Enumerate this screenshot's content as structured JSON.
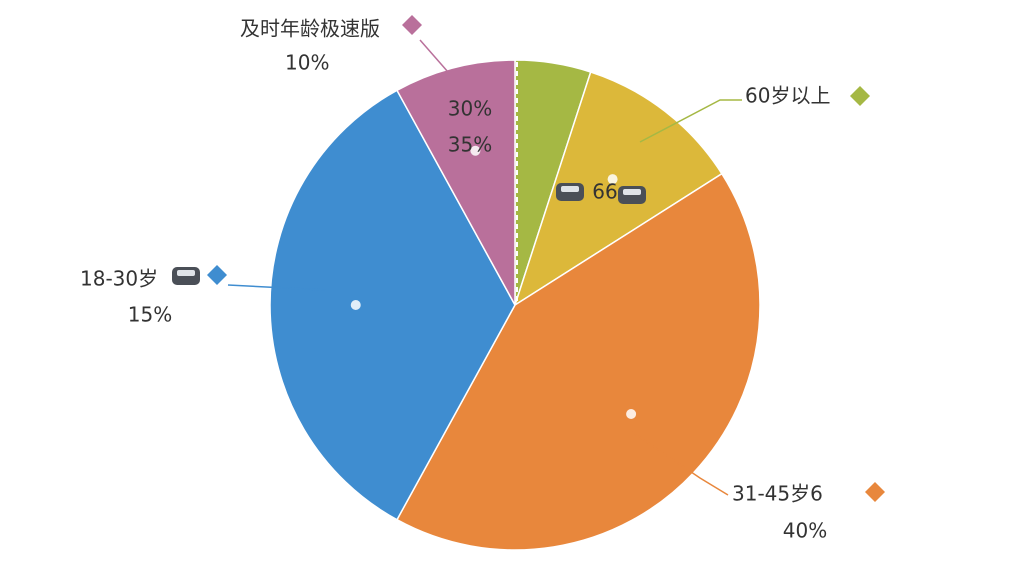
{
  "chart_data": {
    "type": "pie",
    "categories": [
      null,
      "60岁以上",
      "31-45岁6",
      "18-30岁",
      "及时年龄极速版"
    ],
    "values": [
      5,
      11,
      42,
      34,
      8
    ],
    "colors": [
      "#a5b844",
      "#dcb83a",
      "#e8873c",
      "#3f8dd0",
      "#b9709b"
    ],
    "annotations": [
      "10%",
      "30%",
      "35%",
      "66",
      "15%",
      "40%"
    ]
  }
}
